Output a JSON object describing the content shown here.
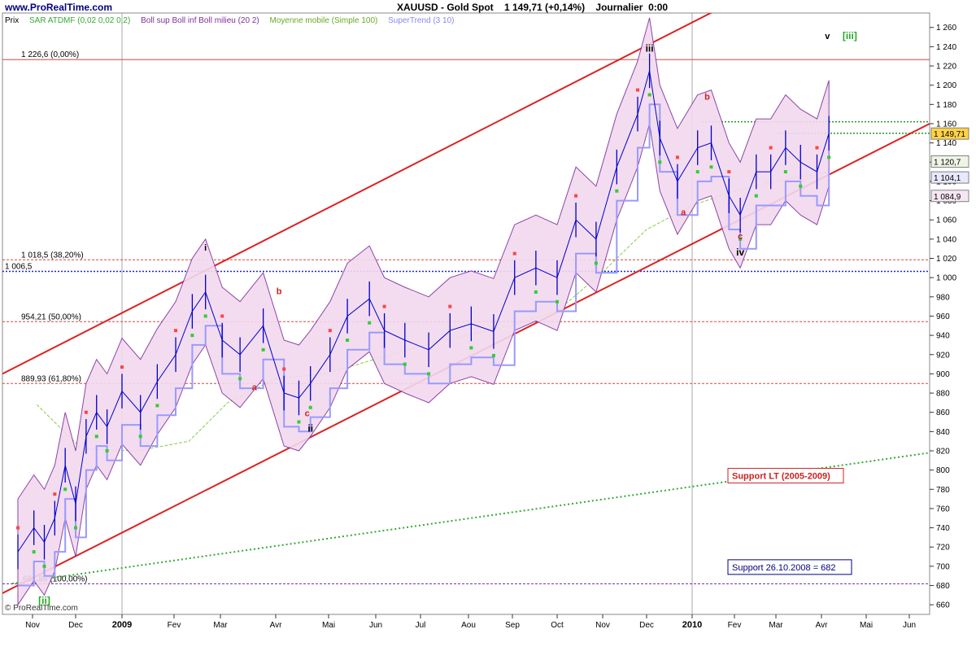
{
  "header": {
    "site": "www.ProRealTime.com",
    "title": "XAUUSD - Gold Spot    1 149,71 (+0,14%)    Journalier  0:00"
  },
  "legend": {
    "price": "Prix",
    "sar": "SAR ATDMF (0,02 0,02 0,2)",
    "bollinger": "Boll sup Boll inf Boll milieu (20 2)",
    "ma": "Moyenne mobile (Simple 100)",
    "supertrend": "SuperTrend (3 10)"
  },
  "footer": {
    "copyright": "ProRealTime.com"
  },
  "colors": {
    "price_bar": "#0000cc",
    "sar": "#ff4444",
    "sar_up": "#33cc33",
    "bollinger_fill": "#f2d9ee",
    "bollinger_line": "#8030a0",
    "ma": "#88cc44",
    "supertrend": "#9999ff",
    "channel": "#dd2222",
    "fib": "#dd4444",
    "support_lt": "#33aa33",
    "support_682": "#000080"
  },
  "chart_data": {
    "type": "line",
    "title": "XAUUSD - Gold Spot",
    "ylabel": "",
    "xlabel": "",
    "ylim": [
      650,
      1275
    ],
    "x_tick_labels": [
      "Nov",
      "Dec",
      "2009",
      "Fev",
      "Mar",
      "Avr",
      "Mai",
      "Jun",
      "Jul",
      "Aou",
      "Sep",
      "Oct",
      "Nov",
      "Dec",
      "2010",
      "Fev",
      "Mar",
      "Avr",
      "Mai",
      "Jun"
    ],
    "y_ticks": [
      660,
      680,
      700,
      720,
      740,
      760,
      780,
      800,
      820,
      840,
      860,
      880,
      900,
      920,
      940,
      960,
      980,
      1000,
      1020,
      1040,
      1060,
      1080,
      1100,
      1120,
      1140,
      1160,
      1180,
      1200,
      1220,
      1240,
      1260
    ],
    "y_tick_labels": [
      "660",
      "680",
      "700",
      "720",
      "740",
      "760",
      "780",
      "800",
      "820",
      "840",
      "860",
      "880",
      "900",
      "920",
      "940",
      "960",
      "980",
      "1 000",
      "1 020",
      "1 040",
      "1 060",
      "1 080",
      "1 100",
      "1 120",
      "1 140",
      "1 160",
      "1 180",
      "1 200",
      "1 220",
      "1 240",
      "1 260"
    ],
    "series": [
      {
        "name": "XAUUSD",
        "x": [
          "2008-10-27",
          "2008-11-03",
          "2008-11-10",
          "2008-11-17",
          "2008-11-24",
          "2008-12-01",
          "2008-12-08",
          "2008-12-15",
          "2008-12-22",
          "2009-01-01",
          "2009-01-12",
          "2009-01-22",
          "2009-02-02",
          "2009-02-12",
          "2009-02-20",
          "2009-03-02",
          "2009-03-12",
          "2009-03-25",
          "2009-04-06",
          "2009-04-15",
          "2009-04-22",
          "2009-05-04",
          "2009-05-15",
          "2009-05-29",
          "2009-06-08",
          "2009-06-22",
          "2009-07-08",
          "2009-07-22",
          "2009-08-05",
          "2009-08-20",
          "2009-09-03",
          "2009-09-17",
          "2009-10-01",
          "2009-10-14",
          "2009-10-28",
          "2009-11-11",
          "2009-11-25",
          "2009-12-03",
          "2009-12-10",
          "2009-12-22",
          "2010-01-05",
          "2010-01-15",
          "2010-01-28",
          "2010-02-05",
          "2010-02-16",
          "2010-02-26",
          "2010-03-08",
          "2010-03-18",
          "2010-03-29",
          "2010-04-06"
        ],
        "values": [
          715,
          740,
          725,
          750,
          805,
          765,
          835,
          860,
          845,
          882,
          860,
          892,
          920,
          965,
          985,
          935,
          920,
          950,
          880,
          875,
          890,
          920,
          960,
          978,
          945,
          935,
          925,
          945,
          952,
          944,
          1000,
          1010,
          1000,
          1060,
          1040,
          1115,
          1170,
          1215,
          1145,
          1100,
          1135,
          1140,
          1085,
          1065,
          1110,
          1110,
          1135,
          1120,
          1110,
          1150
        ]
      },
      {
        "name": "SAR ATDMF",
        "values": []
      },
      {
        "name": "Boll sup / Boll inf / Boll milieu",
        "values": []
      },
      {
        "name": "Moyenne mobile (Simple 100)",
        "values": []
      },
      {
        "name": "SuperTrend",
        "values": []
      }
    ],
    "last_price": 1149.71,
    "change_pct": 0.14,
    "value_tags": [
      {
        "label": "1 149,71",
        "value": 1149.71,
        "color": "#ffd24a"
      },
      {
        "label": "1 120,7",
        "value": 1120.7,
        "color": "#eef5e6"
      },
      {
        "label": "1 104,1",
        "value": 1104.1,
        "color": "#e8e8ff"
      },
      {
        "label": "1 084,9",
        "value": 1084.9,
        "color": "#f6e6f3"
      }
    ],
    "fibonacci": [
      {
        "label": "1 226,6 (0,00%)",
        "value": 1226.6
      },
      {
        "label": "1 018,5 (38,20%)",
        "value": 1018.5
      },
      {
        "label": "954,21 (50,00%)",
        "value": 954.21
      },
      {
        "label": "889,93 (61,80%)",
        "value": 889.93
      },
      {
        "label": "681,86 (100,00%)",
        "value": 681.86
      }
    ],
    "level_1006": {
      "label": "1 006,5",
      "value": 1006.5
    },
    "resistance_1162": 1162,
    "resistance_1150": 1150,
    "wave_labels": [
      {
        "text": "i",
        "color": "#000000",
        "date": "2009-02-20",
        "value": 1028
      },
      {
        "text": "ii",
        "color": "#000000",
        "date": "2009-04-22",
        "value": 840
      },
      {
        "text": "iii",
        "color": "#000000",
        "date": "2009-12-03",
        "value": 1235
      },
      {
        "text": "iv",
        "color": "#000000",
        "date": "2010-02-05",
        "value": 1023
      },
      {
        "text": "v",
        "color": "#000000",
        "date": "2010-04-05",
        "value": 1248
      },
      {
        "text": "[iii]",
        "color": "#22aa22",
        "date": "2010-04-20",
        "value": 1248
      },
      {
        "text": "[ii]",
        "color": "#22aa22",
        "date": "2008-11-10",
        "value": 661
      },
      {
        "text": "a",
        "color": "#cc2222",
        "date": "2009-03-20",
        "value": 883
      },
      {
        "text": "b",
        "color": "#cc2222",
        "date": "2009-04-03",
        "value": 983
      },
      {
        "text": "c",
        "color": "#cc2222",
        "date": "2009-04-20",
        "value": 856
      },
      {
        "text": "a",
        "color": "#cc2222",
        "date": "2009-12-26",
        "value": 1065
      },
      {
        "text": "b",
        "color": "#cc2222",
        "date": "2010-01-12",
        "value": 1185
      },
      {
        "text": "c",
        "color": "#cc2222",
        "date": "2010-02-05",
        "value": 1040
      }
    ],
    "annotations": [
      {
        "text": "Support LT (2005-2009)",
        "color": "#cc2222"
      },
      {
        "text": "Support 26.10.2008 = 682",
        "color": "#000080"
      }
    ]
  }
}
